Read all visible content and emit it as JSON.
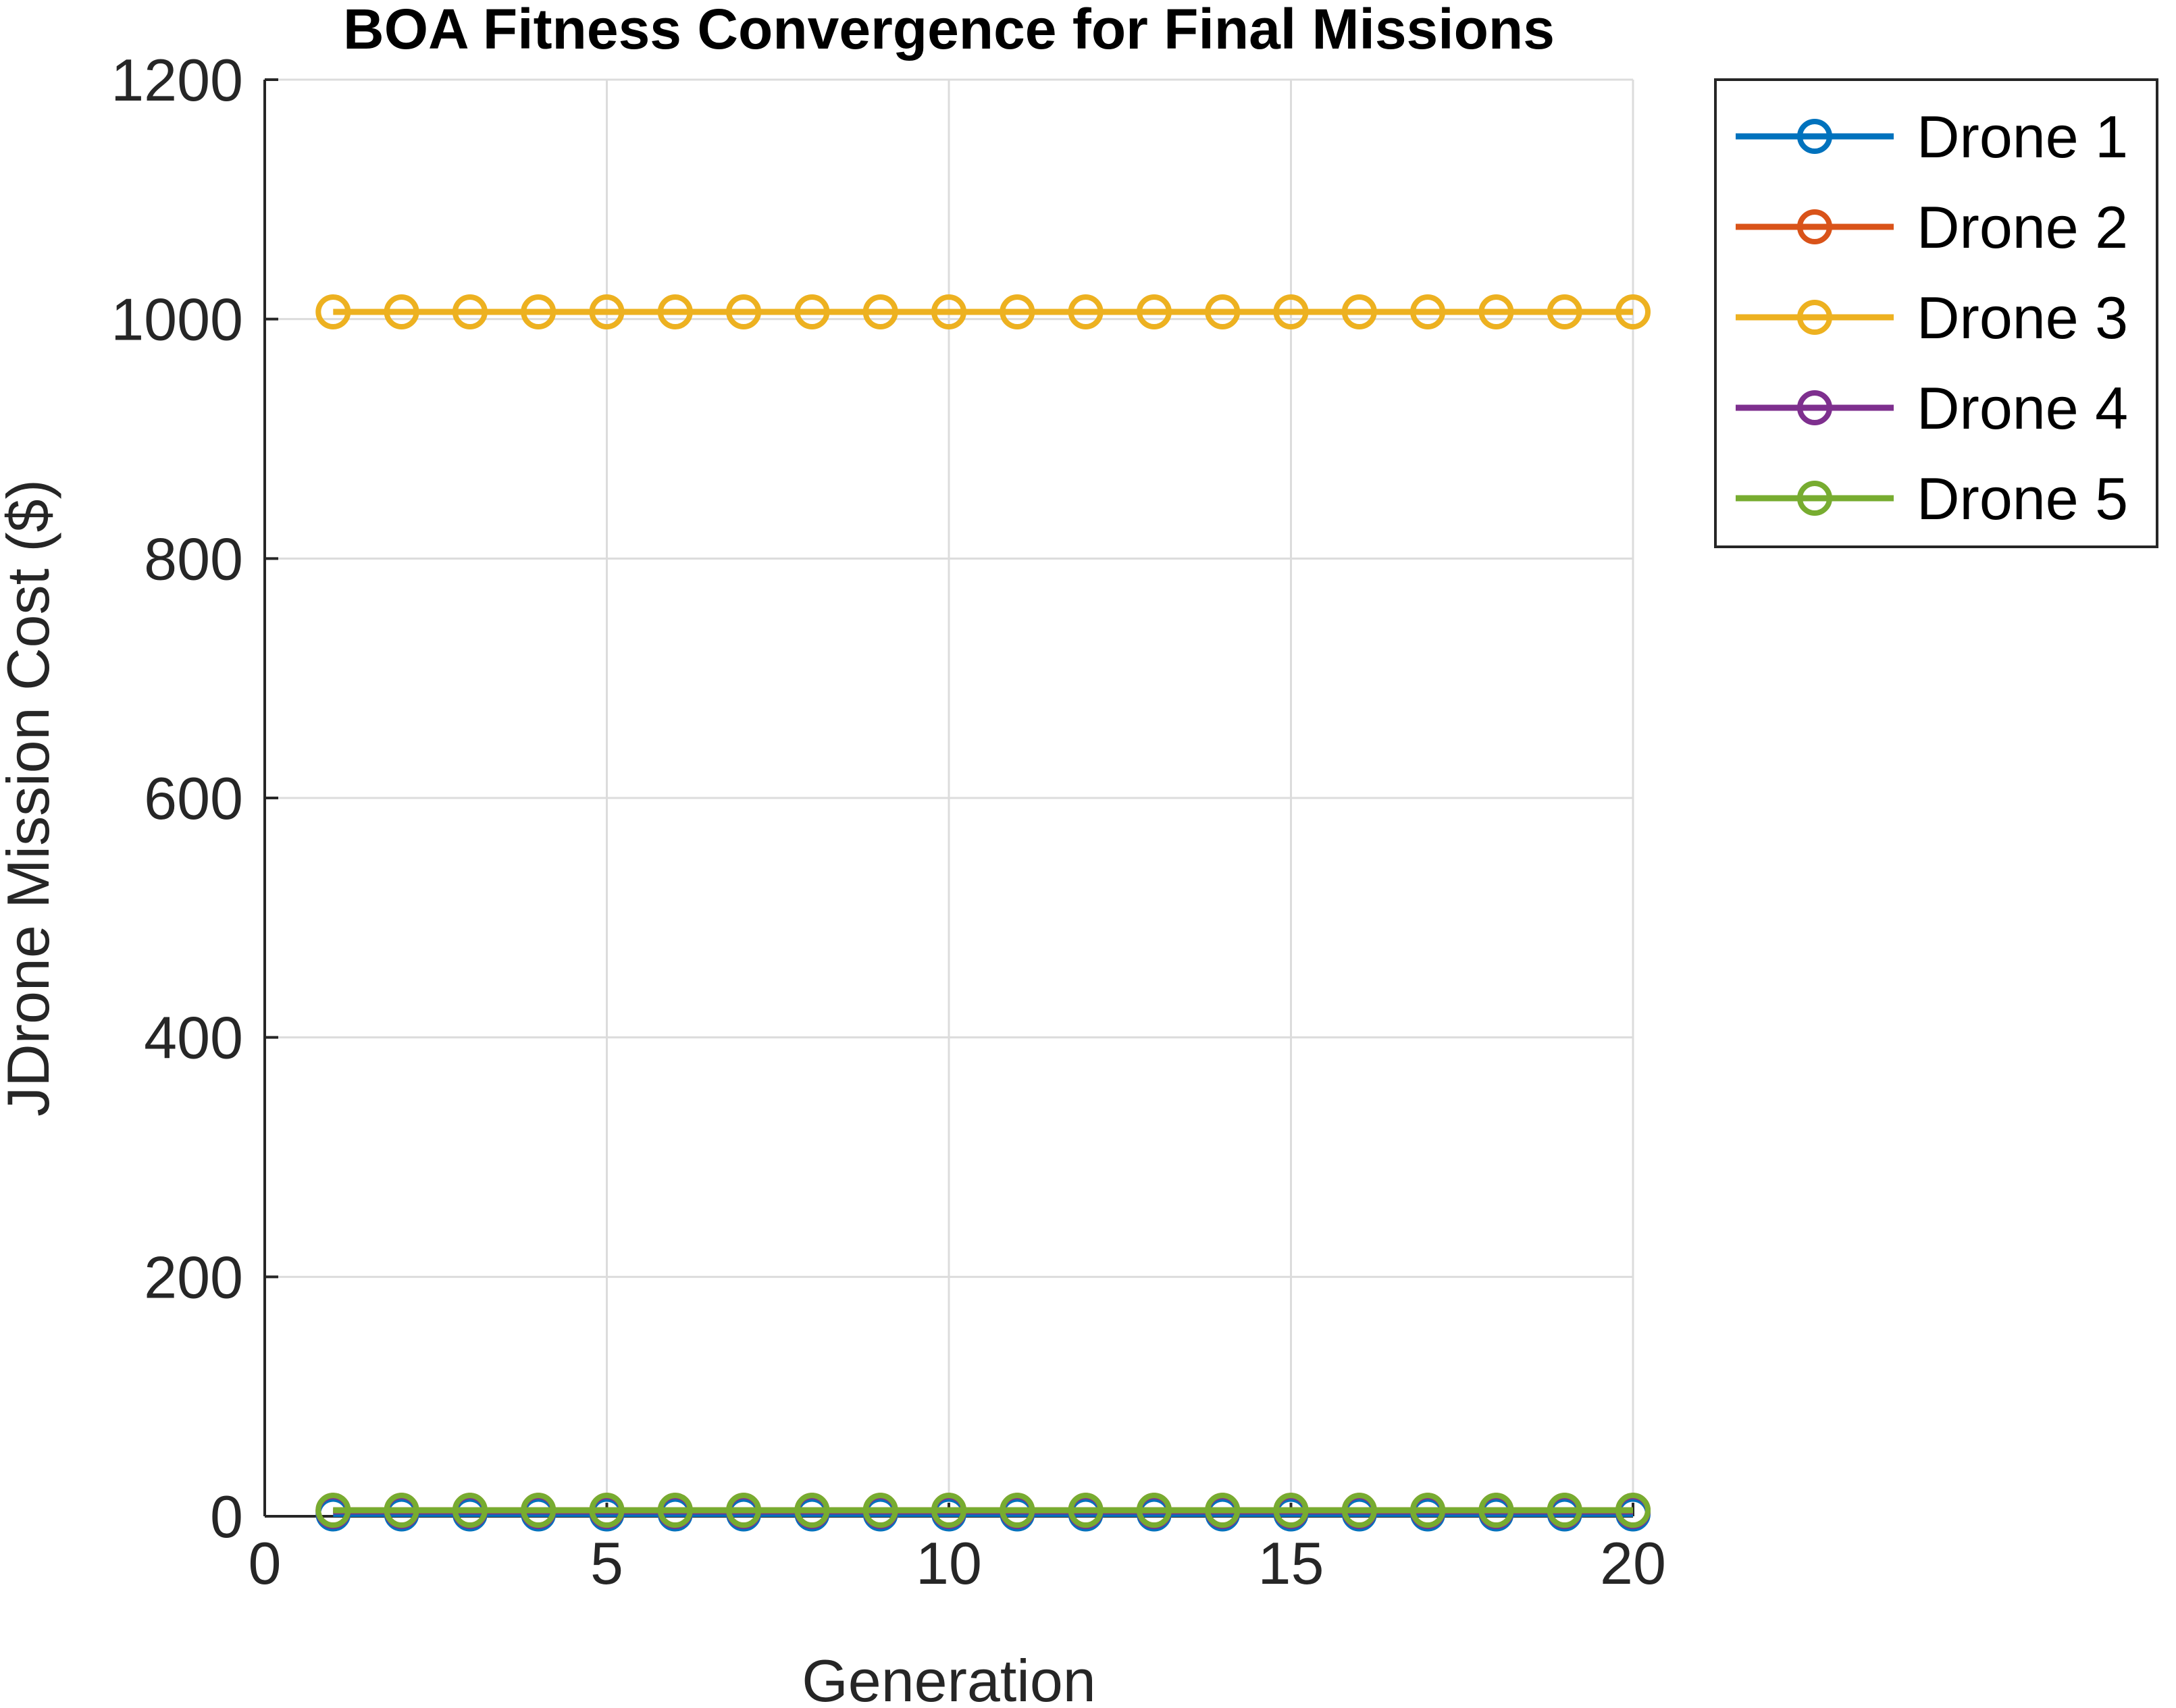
{
  "chart_data": {
    "type": "line",
    "title": "BOA Fitness Convergence for Final Missions",
    "xlabel": "Generation",
    "ylabel": "JDrone Mission Cost ($)",
    "xlim": [
      0,
      20
    ],
    "ylim": [
      0,
      1200
    ],
    "xticks": [
      "0",
      "5",
      "10",
      "15",
      "20"
    ],
    "yticks": [
      "0",
      "200",
      "400",
      "600",
      "800",
      "1000",
      "1200"
    ],
    "grid": true,
    "legend_position": "outside-top-right",
    "x": [
      1,
      2,
      3,
      4,
      5,
      6,
      7,
      8,
      9,
      10,
      11,
      12,
      13,
      14,
      15,
      16,
      17,
      18,
      19,
      20
    ],
    "series": [
      {
        "name": "Drone 1",
        "color": "#0072BD",
        "values": [
          2,
          2,
          2,
          2,
          2,
          2,
          2,
          2,
          2,
          2,
          2,
          2,
          2,
          2,
          2,
          2,
          2,
          2,
          2,
          2
        ]
      },
      {
        "name": "Drone 2",
        "color": "#D95319",
        "values": [
          5,
          5,
          5,
          5,
          5,
          5,
          5,
          5,
          5,
          5,
          5,
          5,
          5,
          5,
          5,
          5,
          5,
          5,
          5,
          5
        ]
      },
      {
        "name": "Drone 3",
        "color": "#EDB120",
        "values": [
          1006,
          1006,
          1006,
          1006,
          1006,
          1006,
          1006,
          1006,
          1006,
          1006,
          1006,
          1006,
          1006,
          1006,
          1006,
          1006,
          1006,
          1006,
          1006,
          1006
        ]
      },
      {
        "name": "Drone 4",
        "color": "#7E2F8E",
        "values": [
          4,
          4,
          4,
          4,
          4,
          4,
          4,
          4,
          4,
          4,
          4,
          4,
          4,
          4,
          4,
          4,
          4,
          4,
          4,
          4
        ]
      },
      {
        "name": "Drone 5",
        "color": "#77AC30",
        "values": [
          5,
          5,
          5,
          5,
          5,
          5,
          5,
          5,
          5,
          5,
          5,
          5,
          5,
          5,
          5,
          5,
          5,
          5,
          5,
          5
        ]
      }
    ]
  }
}
